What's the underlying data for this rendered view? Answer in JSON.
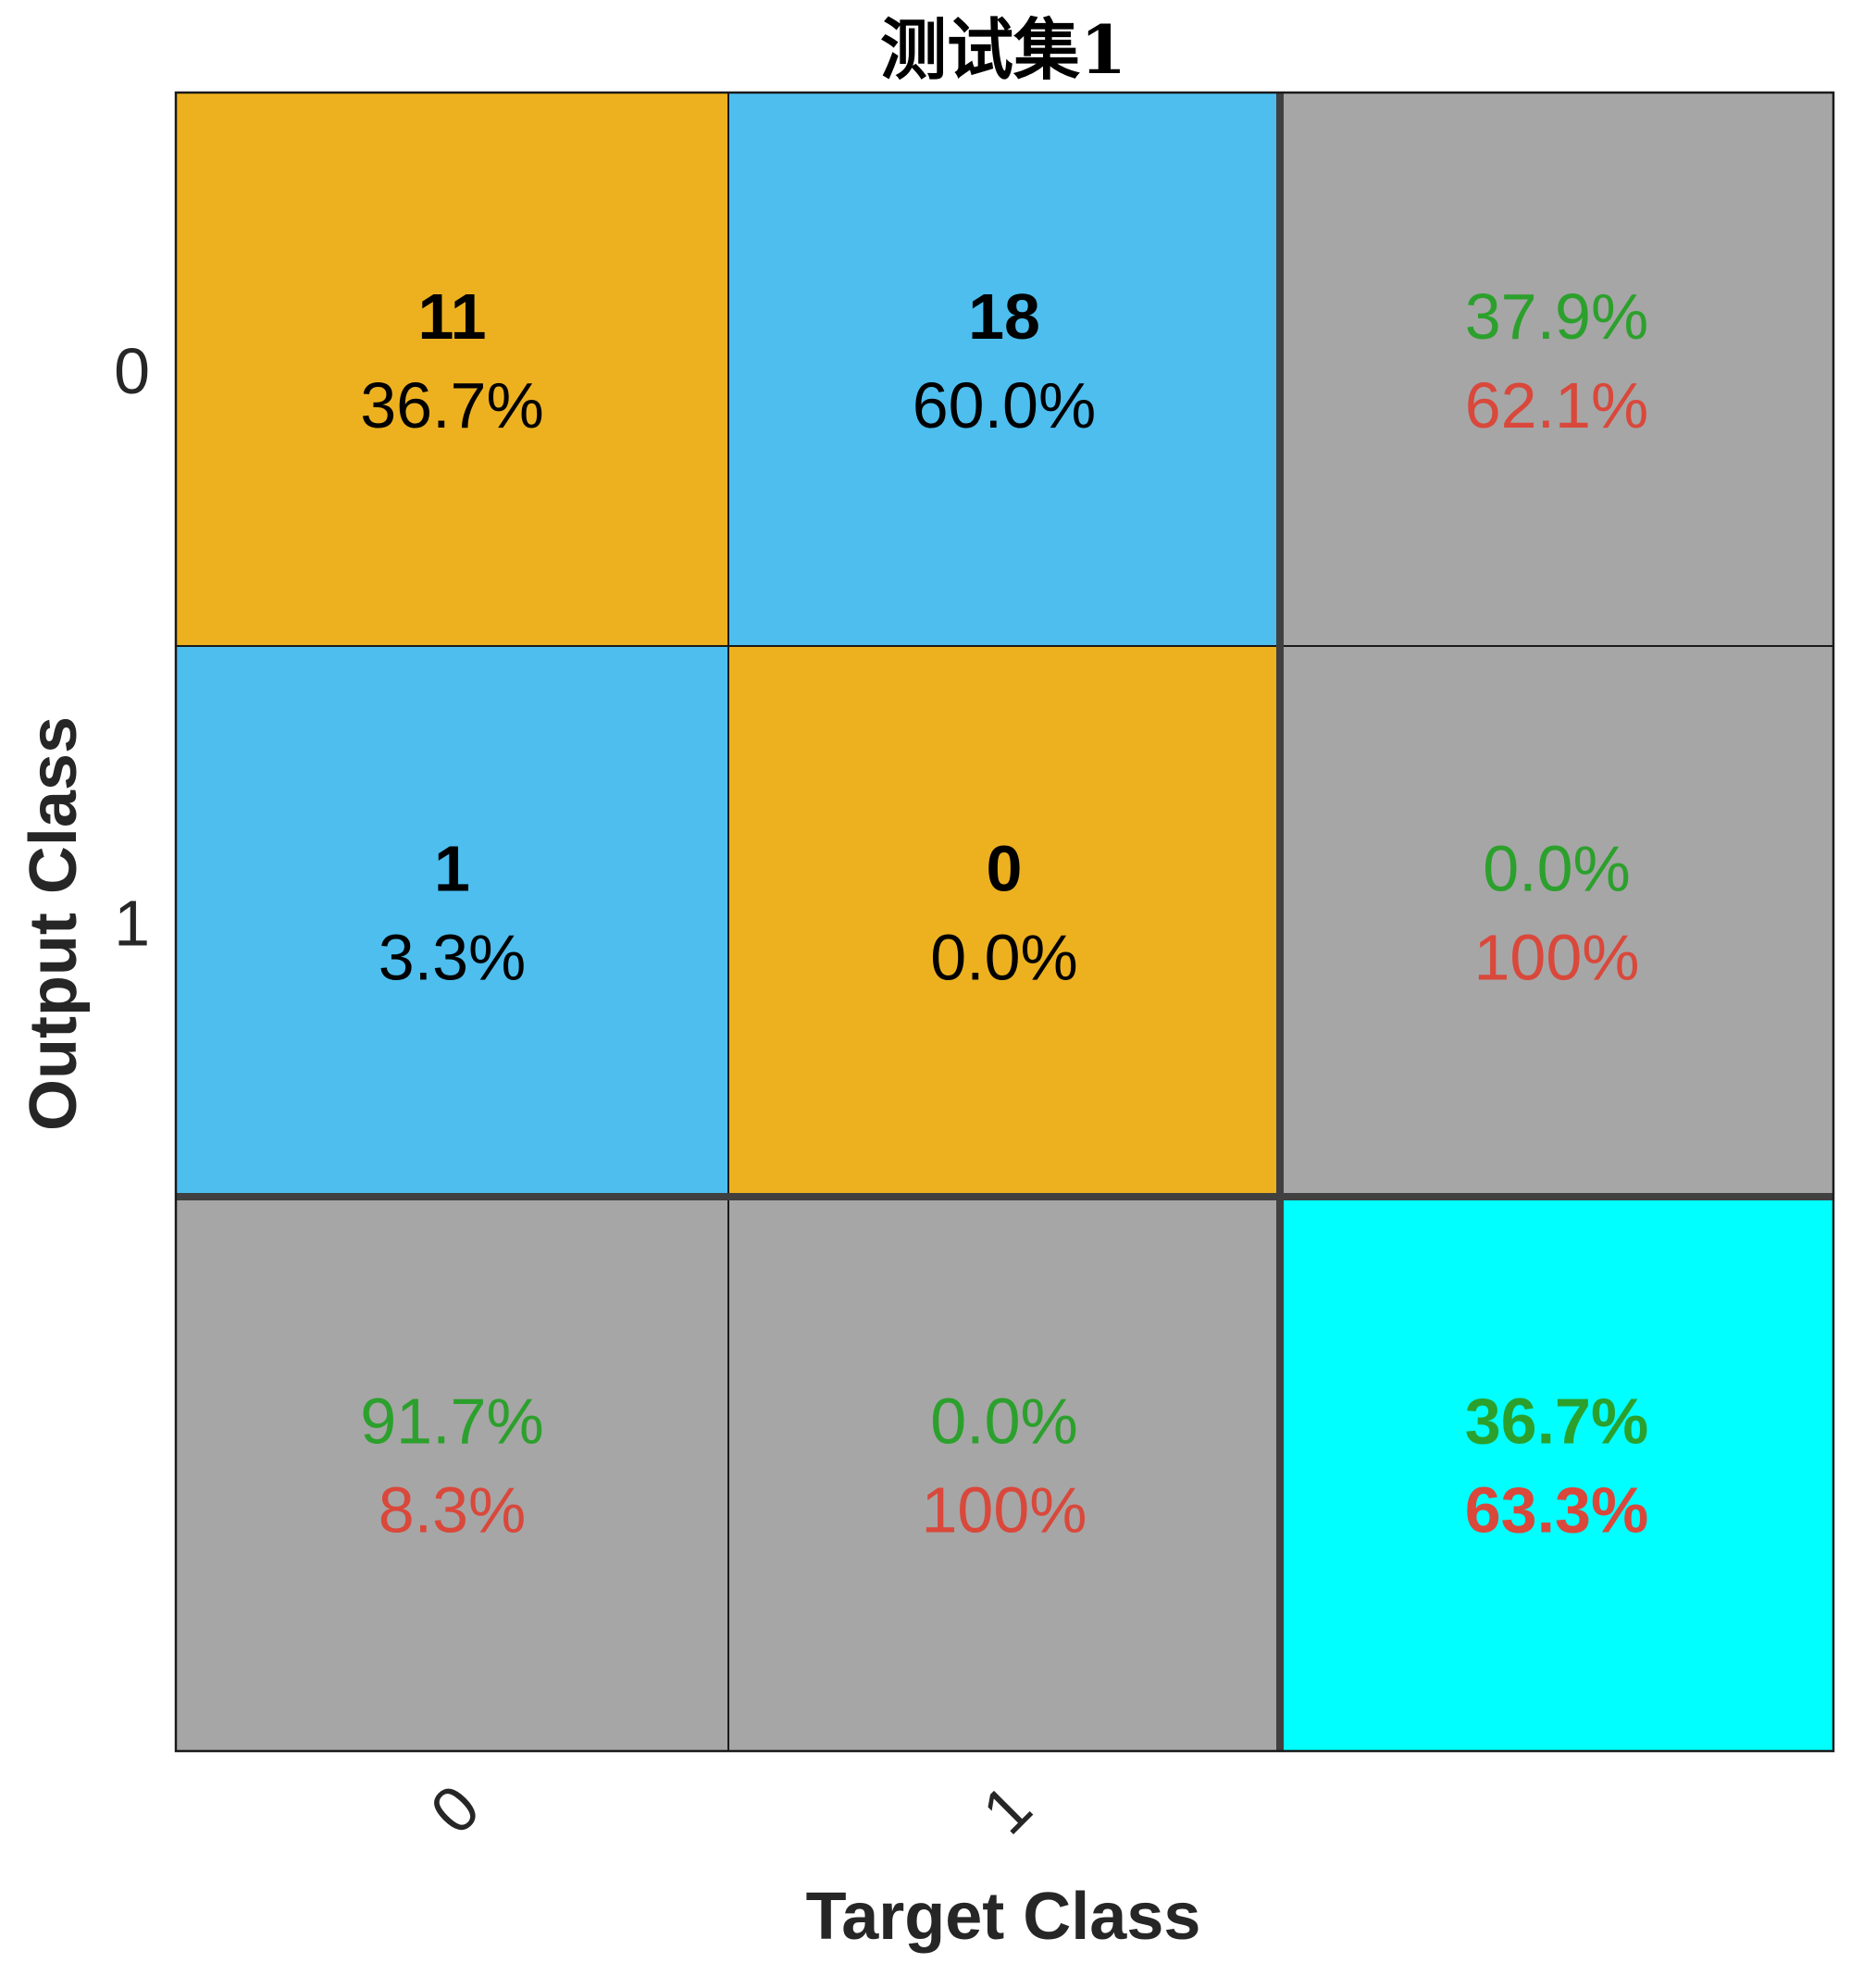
{
  "chart_data": {
    "type": "heatmap",
    "title": "测试集1",
    "xlabel": "Target Class",
    "ylabel": "Output Class",
    "x_tick_labels": [
      "0",
      "1"
    ],
    "y_tick_labels": [
      "0",
      "1"
    ],
    "matrix": [
      [
        {
          "count": "11",
          "percent": "36.7%",
          "kind": "correct"
        },
        {
          "count": "18",
          "percent": "60.0%",
          "kind": "error"
        }
      ],
      [
        {
          "count": "1",
          "percent": "3.3%",
          "kind": "error"
        },
        {
          "count": "0",
          "percent": "0.0%",
          "kind": "correct"
        }
      ]
    ],
    "row_summary": [
      {
        "correct": "37.9%",
        "wrong": "62.1%"
      },
      {
        "correct": "0.0%",
        "wrong": "100%"
      }
    ],
    "col_summary": [
      {
        "correct": "91.7%",
        "wrong": "8.3%"
      },
      {
        "correct": "0.0%",
        "wrong": "100%"
      }
    ],
    "overall": {
      "correct": "36.7%",
      "wrong": "63.3%"
    }
  },
  "colors": {
    "correct_cell": "#EDB120",
    "error_cell": "#4DBEEE",
    "summary_cell": "#A6A6A6",
    "overall_cell": "#00FFFF",
    "green_text": "#2CA02C",
    "red_text": "#D9483B",
    "grid_line": "#1a1a1a",
    "thick_line": "#404040",
    "text": "#000000"
  }
}
